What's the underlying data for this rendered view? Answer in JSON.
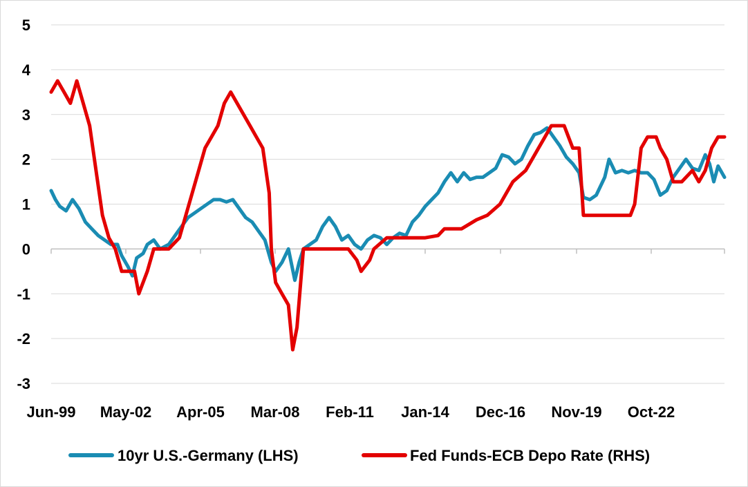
{
  "chart_data": {
    "type": "line",
    "title": "",
    "xlabel": "",
    "ylabel": "",
    "ylim": [
      -3,
      5
    ],
    "y_ticks": [
      "5",
      "4",
      "3",
      "2",
      "1",
      "0",
      "-1",
      "-2",
      "-3"
    ],
    "x_ticks": [
      "Jun-99",
      "May-02",
      "Apr-05",
      "Mar-08",
      "Feb-11",
      "Jan-14",
      "Dec-16",
      "Nov-19",
      "Oct-22"
    ],
    "grid": "horizontal",
    "legend_position": "bottom",
    "series": [
      {
        "name": "10yr U.S.-Germany (LHS)",
        "color": "#1a8cb3",
        "points": [
          [
            "1999-06",
            1.3
          ],
          [
            "1999-08",
            1.1
          ],
          [
            "1999-10",
            0.95
          ],
          [
            "2000-01",
            0.85
          ],
          [
            "2000-04",
            1.1
          ],
          [
            "2000-07",
            0.9
          ],
          [
            "2000-10",
            0.6
          ],
          [
            "2001-01",
            0.45
          ],
          [
            "2001-04",
            0.3
          ],
          [
            "2001-07",
            0.2
          ],
          [
            "2001-10",
            0.1
          ],
          [
            "2002-01",
            0.1
          ],
          [
            "2002-03",
            -0.15
          ],
          [
            "2002-06",
            -0.4
          ],
          [
            "2002-08",
            -0.6
          ],
          [
            "2002-10",
            -0.2
          ],
          [
            "2003-01",
            -0.1
          ],
          [
            "2003-03",
            0.1
          ],
          [
            "2003-06",
            0.2
          ],
          [
            "2003-09",
            0.0
          ],
          [
            "2004-01",
            0.1
          ],
          [
            "2004-04",
            0.3
          ],
          [
            "2004-07",
            0.5
          ],
          [
            "2004-10",
            0.7
          ],
          [
            "2005-01",
            0.8
          ],
          [
            "2005-04",
            0.9
          ],
          [
            "2005-07",
            1.0
          ],
          [
            "2005-10",
            1.1
          ],
          [
            "2006-01",
            1.1
          ],
          [
            "2006-04",
            1.05
          ],
          [
            "2006-07",
            1.1
          ],
          [
            "2006-10",
            0.9
          ],
          [
            "2007-01",
            0.7
          ],
          [
            "2007-04",
            0.6
          ],
          [
            "2007-07",
            0.4
          ],
          [
            "2007-10",
            0.2
          ],
          [
            "2008-01",
            -0.3
          ],
          [
            "2008-03",
            -0.5
          ],
          [
            "2008-06",
            -0.3
          ],
          [
            "2008-09",
            0.0
          ],
          [
            "2008-12",
            -0.7
          ],
          [
            "2009-02",
            -0.3
          ],
          [
            "2009-04",
            0.0
          ],
          [
            "2009-07",
            0.1
          ],
          [
            "2009-10",
            0.2
          ],
          [
            "2010-01",
            0.5
          ],
          [
            "2010-04",
            0.7
          ],
          [
            "2010-07",
            0.5
          ],
          [
            "2010-10",
            0.2
          ],
          [
            "2011-01",
            0.3
          ],
          [
            "2011-04",
            0.1
          ],
          [
            "2011-07",
            0.0
          ],
          [
            "2011-10",
            0.2
          ],
          [
            "2012-01",
            0.3
          ],
          [
            "2012-04",
            0.25
          ],
          [
            "2012-07",
            0.1
          ],
          [
            "2012-10",
            0.25
          ],
          [
            "2013-01",
            0.35
          ],
          [
            "2013-04",
            0.3
          ],
          [
            "2013-07",
            0.6
          ],
          [
            "2013-10",
            0.75
          ],
          [
            "2014-01",
            0.95
          ],
          [
            "2014-04",
            1.1
          ],
          [
            "2014-07",
            1.25
          ],
          [
            "2014-10",
            1.5
          ],
          [
            "2015-01",
            1.7
          ],
          [
            "2015-04",
            1.5
          ],
          [
            "2015-07",
            1.7
          ],
          [
            "2015-10",
            1.55
          ],
          [
            "2016-01",
            1.6
          ],
          [
            "2016-04",
            1.6
          ],
          [
            "2016-07",
            1.7
          ],
          [
            "2016-10",
            1.8
          ],
          [
            "2017-01",
            2.1
          ],
          [
            "2017-04",
            2.05
          ],
          [
            "2017-07",
            1.9
          ],
          [
            "2017-10",
            2.0
          ],
          [
            "2018-01",
            2.3
          ],
          [
            "2018-04",
            2.55
          ],
          [
            "2018-07",
            2.6
          ],
          [
            "2018-10",
            2.7
          ],
          [
            "2019-01",
            2.5
          ],
          [
            "2019-04",
            2.3
          ],
          [
            "2019-07",
            2.05
          ],
          [
            "2019-10",
            1.9
          ],
          [
            "2020-01",
            1.7
          ],
          [
            "2020-03",
            1.15
          ],
          [
            "2020-06",
            1.1
          ],
          [
            "2020-09",
            1.2
          ],
          [
            "2021-01",
            1.6
          ],
          [
            "2021-03",
            2.0
          ],
          [
            "2021-06",
            1.7
          ],
          [
            "2021-09",
            1.75
          ],
          [
            "2021-12",
            1.7
          ],
          [
            "2022-03",
            1.75
          ],
          [
            "2022-06",
            1.7
          ],
          [
            "2022-09",
            1.7
          ],
          [
            "2022-12",
            1.55
          ],
          [
            "2023-03",
            1.2
          ],
          [
            "2023-06",
            1.3
          ],
          [
            "2023-09",
            1.6
          ],
          [
            "2023-12",
            1.8
          ],
          [
            "2024-03",
            2.0
          ],
          [
            "2024-06",
            1.8
          ],
          [
            "2024-09",
            1.75
          ],
          [
            "2024-12",
            2.1
          ],
          [
            "2025-02",
            1.9
          ],
          [
            "2025-04",
            1.5
          ],
          [
            "2025-06",
            1.85
          ],
          [
            "2025-09",
            1.6
          ]
        ]
      },
      {
        "name": "Fed Funds-ECB Depo Rate (RHS)",
        "color": "#e30000",
        "points": [
          [
            "1999-06",
            3.5
          ],
          [
            "1999-09",
            3.75
          ],
          [
            "1999-12",
            3.5
          ],
          [
            "2000-03",
            3.25
          ],
          [
            "2000-06",
            3.75
          ],
          [
            "2000-09",
            3.25
          ],
          [
            "2000-12",
            2.75
          ],
          [
            "2001-03",
            1.75
          ],
          [
            "2001-06",
            0.75
          ],
          [
            "2001-09",
            0.25
          ],
          [
            "2001-12",
            0.0
          ],
          [
            "2002-03",
            -0.5
          ],
          [
            "2002-06",
            -0.5
          ],
          [
            "2002-09",
            -0.5
          ],
          [
            "2002-11",
            -1.0
          ],
          [
            "2003-03",
            -0.5
          ],
          [
            "2003-06",
            0.0
          ],
          [
            "2003-09",
            0.0
          ],
          [
            "2004-01",
            0.0
          ],
          [
            "2004-06",
            0.25
          ],
          [
            "2004-09",
            0.75
          ],
          [
            "2004-12",
            1.25
          ],
          [
            "2005-03",
            1.75
          ],
          [
            "2005-06",
            2.25
          ],
          [
            "2005-09",
            2.5
          ],
          [
            "2005-12",
            2.75
          ],
          [
            "2006-03",
            3.25
          ],
          [
            "2006-06",
            3.5
          ],
          [
            "2006-09",
            3.25
          ],
          [
            "2006-12",
            3.0
          ],
          [
            "2007-03",
            2.75
          ],
          [
            "2007-06",
            2.5
          ],
          [
            "2007-09",
            2.25
          ],
          [
            "2007-12",
            1.25
          ],
          [
            "2008-01",
            0.0
          ],
          [
            "2008-03",
            -0.75
          ],
          [
            "2008-06",
            -1.0
          ],
          [
            "2008-09",
            -1.25
          ],
          [
            "2008-11",
            -2.25
          ],
          [
            "2009-01",
            -1.75
          ],
          [
            "2009-04",
            0.0
          ],
          [
            "2009-07",
            0.0
          ],
          [
            "2010-01",
            0.0
          ],
          [
            "2010-07",
            0.0
          ],
          [
            "2011-01",
            0.0
          ],
          [
            "2011-05",
            -0.25
          ],
          [
            "2011-07",
            -0.5
          ],
          [
            "2011-11",
            -0.25
          ],
          [
            "2012-01",
            0.0
          ],
          [
            "2012-07",
            0.25
          ],
          [
            "2013-01",
            0.25
          ],
          [
            "2013-07",
            0.25
          ],
          [
            "2014-01",
            0.25
          ],
          [
            "2014-07",
            0.3
          ],
          [
            "2014-10",
            0.45
          ],
          [
            "2015-06",
            0.45
          ],
          [
            "2016-01",
            0.65
          ],
          [
            "2016-06",
            0.75
          ],
          [
            "2016-12",
            1.0
          ],
          [
            "2017-03",
            1.25
          ],
          [
            "2017-06",
            1.5
          ],
          [
            "2017-12",
            1.75
          ],
          [
            "2018-03",
            2.0
          ],
          [
            "2018-06",
            2.25
          ],
          [
            "2018-09",
            2.5
          ],
          [
            "2018-12",
            2.75
          ],
          [
            "2019-03",
            2.75
          ],
          [
            "2019-06",
            2.75
          ],
          [
            "2019-08",
            2.5
          ],
          [
            "2019-10",
            2.25
          ],
          [
            "2020-01",
            2.25
          ],
          [
            "2020-03",
            0.75
          ],
          [
            "2020-06",
            0.75
          ],
          [
            "2021-01",
            0.75
          ],
          [
            "2021-06",
            0.75
          ],
          [
            "2022-01",
            0.75
          ],
          [
            "2022-03",
            1.0
          ],
          [
            "2022-06",
            2.25
          ],
          [
            "2022-09",
            2.5
          ],
          [
            "2023-01",
            2.5
          ],
          [
            "2023-03",
            2.25
          ],
          [
            "2023-06",
            2.0
          ],
          [
            "2023-09",
            1.5
          ],
          [
            "2024-01",
            1.5
          ],
          [
            "2024-06",
            1.75
          ],
          [
            "2024-09",
            1.5
          ],
          [
            "2024-12",
            1.75
          ],
          [
            "2025-03",
            2.25
          ],
          [
            "2025-06",
            2.5
          ],
          [
            "2025-09",
            2.5
          ]
        ]
      }
    ]
  }
}
